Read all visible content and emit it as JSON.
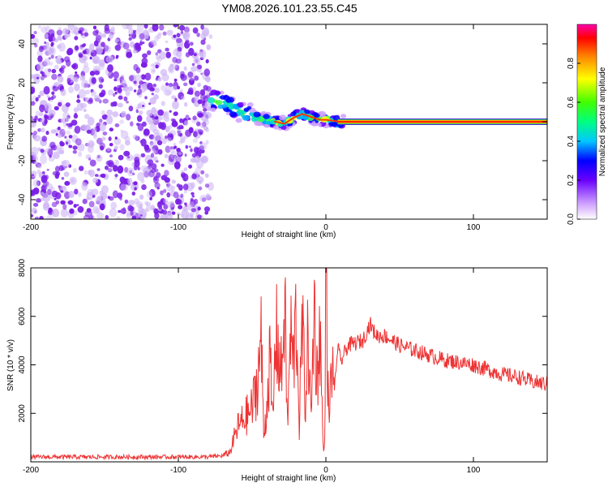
{
  "title": "YM08.2026.101.23.55.C45",
  "colors": {
    "snr_line": "#ee3333",
    "scatter": "#7a1fe6",
    "scatter_light": "#cdb3f5",
    "frame": "#000000"
  },
  "chart_data": [
    {
      "type": "heatmap",
      "name": "spectrogram",
      "xlabel": "Height of straight line (km)",
      "ylabel": "Frequency (Hz)",
      "xlim": [
        -200,
        150
      ],
      "ylim": [
        -50,
        50
      ],
      "xticks": [
        "-200",
        "-100",
        "0",
        "100"
      ],
      "xtick_values": [
        -200,
        -100,
        0,
        100
      ],
      "yticks": [
        "-40",
        "-20",
        "0",
        "20",
        "40"
      ],
      "ytick_values": [
        -40,
        -20,
        0,
        20,
        40
      ],
      "noise_region_x": [
        -200,
        -78
      ],
      "ridge": {
        "x": [
          -78,
          -72,
          -65,
          -58,
          -52,
          -46,
          -40,
          -34,
          -28,
          -22,
          -16,
          -12,
          -8,
          -4,
          0,
          5,
          10,
          150
        ],
        "y": [
          11,
          11,
          8,
          5,
          4,
          2,
          1,
          0,
          -1,
          2,
          4,
          3,
          2,
          1,
          1,
          0.5,
          0,
          0
        ]
      },
      "colorbar": {
        "label": "Normalized spectral amplitude",
        "range": [
          0,
          1
        ],
        "ticks": [
          "0.0",
          "0.2",
          "0.4",
          "0.6",
          "0.8"
        ],
        "tick_values": [
          0,
          0.2,
          0.4,
          0.6,
          0.8
        ]
      }
    },
    {
      "type": "line",
      "name": "snr",
      "xlabel": "Height of straight line (km)",
      "ylabel": "SNR (10 * v/v)",
      "xlim": [
        -200,
        150
      ],
      "ylim": [
        0,
        8000
      ],
      "xticks": [
        "-200",
        "-100",
        "0",
        "100"
      ],
      "xtick_values": [
        -200,
        -100,
        0,
        100
      ],
      "yticks": [
        "2000",
        "4000",
        "6000",
        "8000"
      ],
      "ytick_values": [
        2000,
        4000,
        6000,
        8000
      ],
      "series": [
        {
          "name": "SNR",
          "x": [
            -200,
            -180,
            -160,
            -140,
            -120,
            -100,
            -90,
            -80,
            -70,
            -65,
            -60,
            -55,
            -50,
            -46,
            -44,
            -42,
            -40,
            -38,
            -36,
            -34,
            -30,
            -28,
            -26,
            -24,
            -22,
            -20,
            -18,
            -16,
            -14,
            -12,
            -10,
            -8,
            -6,
            -4,
            -2,
            -1,
            0,
            2,
            4,
            6,
            8,
            10,
            12,
            15,
            20,
            25,
            30,
            32,
            35,
            40,
            45,
            50,
            60,
            70,
            80,
            90,
            100,
            110,
            120,
            130,
            140,
            150
          ],
          "y": [
            200,
            200,
            200,
            200,
            200,
            200,
            200,
            200,
            250,
            400,
            1400,
            1800,
            2200,
            3500,
            5200,
            1000,
            2400,
            4300,
            1500,
            5400,
            3500,
            6800,
            1400,
            5300,
            4000,
            6200,
            1500,
            5800,
            2400,
            5200,
            1600,
            6700,
            3400,
            5500,
            800,
            300,
            8000,
            1500,
            4000,
            3000,
            4800,
            4100,
            4400,
            4800,
            4900,
            5000,
            5700,
            5400,
            5200,
            5200,
            5000,
            4800,
            4600,
            4400,
            4200,
            4100,
            4000,
            3800,
            3600,
            3500,
            3300,
            3200
          ]
        }
      ]
    }
  ]
}
